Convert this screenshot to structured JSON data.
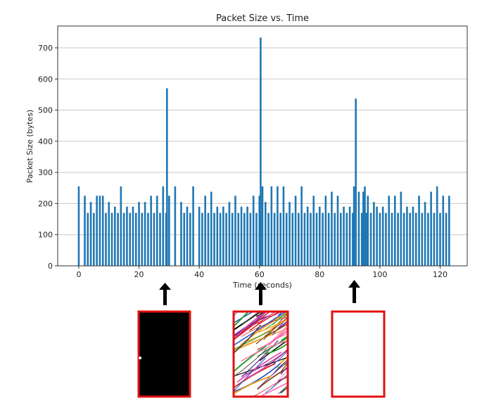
{
  "chart_data": {
    "type": "bar",
    "title": "Packet Size vs. Time",
    "xlabel": "Time (seconds)",
    "ylabel": "Packet Size (bytes)",
    "xlim": [
      -7,
      129
    ],
    "ylim": [
      0,
      770
    ],
    "xticks": [
      0,
      20,
      40,
      60,
      80,
      100,
      120
    ],
    "yticks": [
      0,
      100,
      200,
      300,
      400,
      500,
      600,
      700
    ],
    "grid": "horizontal",
    "bar_color": "#1f77b4",
    "series": [
      {
        "x": [
          0,
          2,
          3,
          4,
          5,
          6,
          7,
          8,
          9,
          10,
          11,
          12,
          13,
          14,
          15,
          16,
          17,
          18,
          19,
          20,
          21,
          22,
          23,
          24,
          25,
          26,
          27,
          28,
          29,
          29.3,
          30,
          32,
          34,
          35,
          36,
          37,
          38,
          40,
          41,
          42,
          43,
          44,
          45,
          46,
          47,
          48,
          49,
          50,
          51,
          52,
          53,
          54,
          55,
          56,
          57,
          58,
          59,
          60,
          60.4,
          61,
          62,
          63,
          64,
          65,
          66,
          67,
          68,
          69,
          70,
          71,
          72,
          73,
          74,
          75,
          76,
          77,
          78,
          79,
          80,
          81,
          82,
          83,
          84,
          85,
          86,
          87,
          88,
          89,
          90,
          91,
          91.4,
          92,
          93,
          94,
          94.5,
          95,
          95.5,
          96,
          97,
          98,
          99,
          100,
          101,
          102,
          103,
          104,
          105,
          106,
          107,
          108,
          109,
          110,
          111,
          112,
          113,
          114,
          115,
          116,
          117,
          118,
          119,
          120,
          121,
          122,
          123
        ],
        "values": [
          255,
          225,
          170,
          205,
          170,
          225,
          225,
          225,
          170,
          205,
          170,
          190,
          170,
          255,
          170,
          190,
          170,
          190,
          170,
          205,
          170,
          205,
          170,
          225,
          170,
          225,
          170,
          255,
          170,
          570,
          225,
          255,
          205,
          170,
          190,
          170,
          255,
          190,
          170,
          225,
          170,
          238,
          170,
          190,
          170,
          190,
          170,
          205,
          170,
          225,
          170,
          190,
          170,
          190,
          170,
          225,
          170,
          225,
          733,
          255,
          205,
          170,
          255,
          170,
          255,
          170,
          255,
          170,
          205,
          170,
          225,
          170,
          255,
          170,
          190,
          170,
          225,
          170,
          190,
          170,
          225,
          170,
          238,
          170,
          225,
          170,
          190,
          170,
          190,
          170,
          255,
          537,
          238,
          170,
          238,
          255,
          170,
          225,
          170,
          205,
          190,
          170,
          190,
          170,
          225,
          170,
          225,
          170,
          238,
          170,
          190,
          170,
          190,
          170,
          225,
          170,
          205,
          170,
          238,
          170,
          255,
          170,
          225,
          170,
          225
        ]
      }
    ]
  },
  "annotations": {
    "arrow_color": "#000000",
    "box_border_color": "#e01010",
    "boxes": [
      {
        "name": "black-sample",
        "fill": "#000000"
      },
      {
        "name": "scribble-sample",
        "fill": "pattern"
      },
      {
        "name": "blank-sample",
        "fill": "#ffffff"
      }
    ]
  }
}
